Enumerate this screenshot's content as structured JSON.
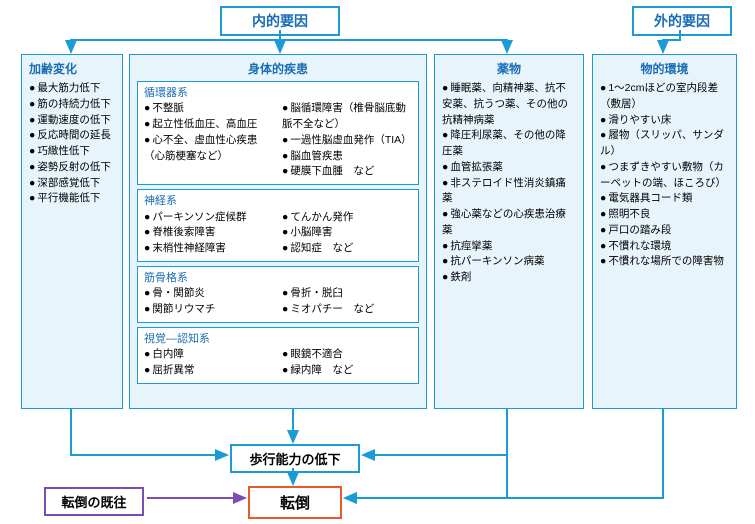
{
  "colors": {
    "blue": "#1a9bd6",
    "darkBlue": "#1a6db5",
    "panelBg": "#e8f4fb",
    "red": "#e85a2c",
    "purple": "#7a4db5"
  },
  "top": {
    "internal": "内的要因",
    "external": "外的要因"
  },
  "aging": {
    "title": "加齢変化",
    "items": [
      "最大筋力低下",
      "筋の持続力低下",
      "運動速度の低下",
      "反応時間の延長",
      "巧緻性低下",
      "姿勢反射の低下",
      "深部感覚低下",
      "平行機能低下"
    ]
  },
  "physical": {
    "title": "身体的疾患",
    "circ": {
      "t": "循環器系",
      "l": [
        "不整脈",
        "起立性低血圧、高血圧",
        "心不全、虚血性心疾患（心筋梗塞など）"
      ],
      "r": [
        "脳循環障害（椎骨脳底動脈不全など）",
        "一過性脳虚血発作（TIA）",
        "脳血管疾患",
        "硬膜下血腫　など"
      ]
    },
    "neuro": {
      "t": "神経系",
      "l": [
        "パーキンソン症候群",
        "脊椎後索障害",
        "末梢性神経障害"
      ],
      "r": [
        "てんかん発作",
        "小脳障害",
        "認知症　など"
      ]
    },
    "musc": {
      "t": "筋骨格系",
      "l": [
        "骨・関節炎",
        "関節リウマチ"
      ],
      "r": [
        "骨折・脱臼",
        "ミオパチー　など"
      ]
    },
    "vis": {
      "t": "視覚―認知系",
      "l": [
        "白内障",
        "屈折異常"
      ],
      "r": [
        "眼鏡不適合",
        "緑内障　など"
      ]
    }
  },
  "drugs": {
    "title": "薬物",
    "items": [
      "睡眠薬、向精神薬、抗不安薬、抗うつ薬、その他の抗精神病薬",
      "降圧利尿薬、その他の降圧薬",
      "血管拡張薬",
      "非ステロイド性消炎鎮痛薬",
      "強心薬などの心疾患治療薬",
      "抗痙攣薬",
      "抗パーキンソン病薬",
      "鉄剤"
    ]
  },
  "env": {
    "title": "物的環境",
    "items": [
      "1〜2cmほどの室内段差（敷居）",
      "滑りやすい床",
      "履物（スリッパ、サンダル）",
      "つまずきやすい敷物（カーペットの端、ほころび）",
      "電気器具コード類",
      "照明不良",
      "戸口の踏み段",
      "不慣れな環境",
      "不慣れな場所での障害物"
    ]
  },
  "walking": "歩行能力の低下",
  "history": "転倒の既往",
  "fall": "転倒"
}
